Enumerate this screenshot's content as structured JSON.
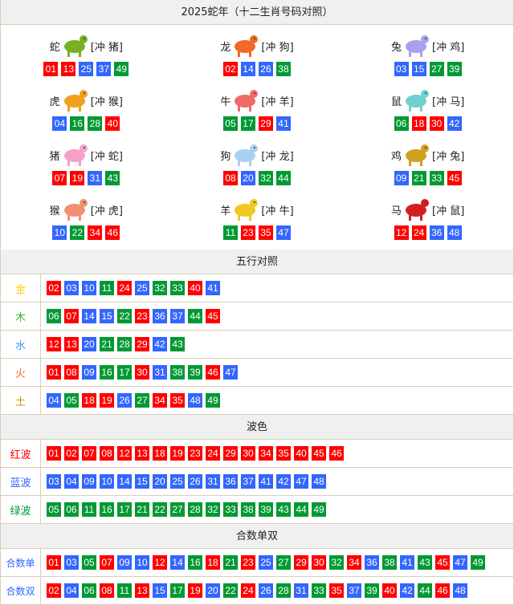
{
  "title": "2025蛇年（十二生肖号码对照）",
  "colors": {
    "red": "#ff0000",
    "blue": "#3366ff",
    "green": "#009933"
  },
  "zodiac": [
    {
      "name": "蛇",
      "clash": "[冲 猪]",
      "color": "#7ab020",
      "numbers": [
        "01",
        "13",
        "25",
        "37",
        "49"
      ]
    },
    {
      "name": "龙",
      "clash": "[冲 狗]",
      "color": "#f06a28",
      "numbers": [
        "02",
        "14",
        "26",
        "38"
      ]
    },
    {
      "name": "兔",
      "clash": "[冲 鸡]",
      "color": "#a8a0f0",
      "numbers": [
        "03",
        "15",
        "27",
        "39"
      ]
    },
    {
      "name": "虎",
      "clash": "[冲 猴]",
      "color": "#f0a020",
      "numbers": [
        "04",
        "16",
        "28",
        "40"
      ]
    },
    {
      "name": "牛",
      "clash": "[冲 羊]",
      "color": "#f06a6a",
      "numbers": [
        "05",
        "17",
        "29",
        "41"
      ]
    },
    {
      "name": "鼠",
      "clash": "[冲 马]",
      "color": "#70d0d0",
      "numbers": [
        "06",
        "18",
        "30",
        "42"
      ]
    },
    {
      "name": "猪",
      "clash": "[冲 蛇]",
      "color": "#f4a0c8",
      "numbers": [
        "07",
        "19",
        "31",
        "43"
      ]
    },
    {
      "name": "狗",
      "clash": "[冲 龙]",
      "color": "#a8d0f0",
      "numbers": [
        "08",
        "20",
        "32",
        "44"
      ]
    },
    {
      "name": "鸡",
      "clash": "[冲 兔]",
      "color": "#d0a020",
      "numbers": [
        "09",
        "21",
        "33",
        "45"
      ]
    },
    {
      "name": "猴",
      "clash": "[冲 虎]",
      "color": "#f09070",
      "numbers": [
        "10",
        "22",
        "34",
        "46"
      ]
    },
    {
      "name": "羊",
      "clash": "[冲 牛]",
      "color": "#f0c820",
      "numbers": [
        "11",
        "23",
        "35",
        "47"
      ]
    },
    {
      "name": "马",
      "clash": "[冲 鼠]",
      "color": "#d02020",
      "numbers": [
        "12",
        "24",
        "36",
        "48"
      ]
    }
  ],
  "elements": {
    "title": "五行对照",
    "rows": [
      {
        "label": "金",
        "color": "#ffcc00",
        "numbers": [
          "02",
          "03",
          "10",
          "11",
          "24",
          "25",
          "32",
          "33",
          "40",
          "41"
        ]
      },
      {
        "label": "木",
        "color": "#33bb33",
        "numbers": [
          "06",
          "07",
          "14",
          "15",
          "22",
          "23",
          "36",
          "37",
          "44",
          "45"
        ]
      },
      {
        "label": "水",
        "color": "#3399ff",
        "numbers": [
          "12",
          "13",
          "20",
          "21",
          "28",
          "29",
          "42",
          "43"
        ]
      },
      {
        "label": "火",
        "color": "#ff6633",
        "numbers": [
          "01",
          "08",
          "09",
          "16",
          "17",
          "30",
          "31",
          "38",
          "39",
          "46",
          "47"
        ]
      },
      {
        "label": "土",
        "color": "#cc9900",
        "numbers": [
          "04",
          "05",
          "18",
          "19",
          "26",
          "27",
          "34",
          "35",
          "48",
          "49"
        ]
      }
    ]
  },
  "waves": {
    "title": "波色",
    "rows": [
      {
        "label": "红波",
        "key": "red",
        "color": "#ff0000",
        "numbers": [
          "01",
          "02",
          "07",
          "08",
          "12",
          "13",
          "18",
          "19",
          "23",
          "24",
          "29",
          "30",
          "34",
          "35",
          "40",
          "45",
          "46"
        ]
      },
      {
        "label": "蓝波",
        "key": "blue",
        "color": "#3366ff",
        "numbers": [
          "03",
          "04",
          "09",
          "10",
          "14",
          "15",
          "20",
          "25",
          "26",
          "31",
          "36",
          "37",
          "41",
          "42",
          "47",
          "48"
        ]
      },
      {
        "label": "绿波",
        "key": "green",
        "color": "#009933",
        "numbers": [
          "05",
          "06",
          "11",
          "16",
          "17",
          "21",
          "22",
          "27",
          "28",
          "32",
          "33",
          "38",
          "39",
          "43",
          "44",
          "49"
        ]
      }
    ]
  },
  "parity": {
    "title": "合数单双",
    "rows": [
      {
        "label": "合数单",
        "color": "#3366ff",
        "numbers": [
          "01",
          "03",
          "05",
          "07",
          "09",
          "10",
          "12",
          "14",
          "16",
          "18",
          "21",
          "23",
          "25",
          "27",
          "29",
          "30",
          "32",
          "34",
          "36",
          "38",
          "41",
          "43",
          "45",
          "47",
          "49"
        ]
      },
      {
        "label": "合数双",
        "color": "#3366ff",
        "numbers": [
          "02",
          "04",
          "06",
          "08",
          "11",
          "13",
          "15",
          "17",
          "19",
          "20",
          "22",
          "24",
          "26",
          "28",
          "31",
          "33",
          "35",
          "37",
          "39",
          "40",
          "42",
          "44",
          "46",
          "48"
        ]
      }
    ]
  }
}
